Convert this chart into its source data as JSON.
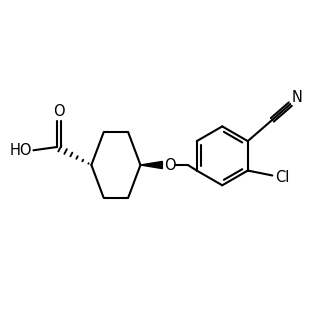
{
  "background_color": "#ffffff",
  "line_color": "#000000",
  "line_width": 1.5,
  "font_size": 10.5,
  "figsize": [
    3.3,
    3.3
  ],
  "dpi": 100,
  "xlim": [
    0,
    10
  ],
  "ylim": [
    0,
    10
  ]
}
